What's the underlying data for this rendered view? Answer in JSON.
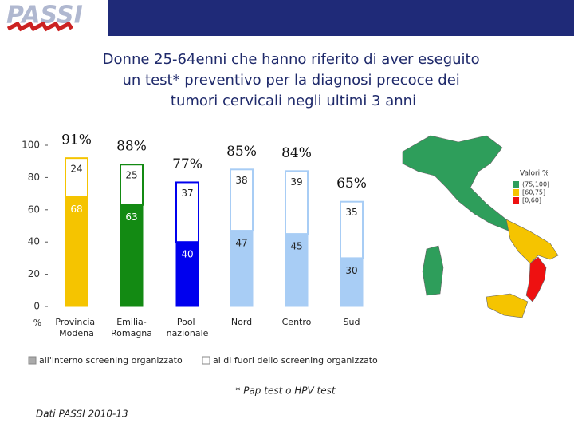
{
  "logo": "PASSI",
  "chart_data": {
    "type": "stacked-bar",
    "title": "Donne 25-64enni che hanno riferito di aver eseguito un test* preventivo per la diagnosi precoce dei tumori cervicali negli ultimi 3 anni",
    "categories": [
      "Provincia Modena",
      "Emilia-Romagna",
      "Pool nazionale",
      "Nord",
      "Centro",
      "Sud"
    ],
    "series": [
      {
        "name": "all'interno screening organizzato",
        "color": "#aaaaaa",
        "bar_colors": [
          "#f5c400",
          "#138a13",
          "#0000ee",
          "#a8cdf5",
          "#a8cdf5",
          "#a8cdf5"
        ],
        "values": [
          68,
          63,
          40,
          47,
          45,
          30
        ]
      },
      {
        "name": "al di fuori dello screening organizzato",
        "color": "#ffffff",
        "values": [
          24,
          25,
          37,
          38,
          39,
          35
        ]
      }
    ],
    "totals": {
      "values": [
        91,
        88,
        77,
        85,
        84,
        65
      ],
      "value_labels": [
        "91%",
        "88%",
        "77%",
        "85%",
        "84%",
        "65%"
      ]
    },
    "ylabel": "%",
    "ylim": [
      0,
      100
    ],
    "yticks": [
      0,
      20,
      40,
      60,
      80,
      100
    ]
  },
  "map_legend": {
    "title": "Valori %",
    "items": [
      {
        "label": "(75,100]",
        "color": "#2e9e5b"
      },
      {
        "label": "[60,75]",
        "color": "#f5c400"
      },
      {
        "label": "[0,60]",
        "color": "#ee1111"
      }
    ]
  },
  "footnote": "* Pap test o HPV test",
  "source": "Dati PASSI 2010-13"
}
